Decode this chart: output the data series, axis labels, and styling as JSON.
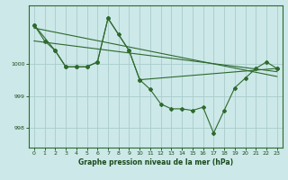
{
  "bg_color": "#cce8e8",
  "plot_bg_color": "#cce8e8",
  "grid_color": "#aacccc",
  "line_color": "#2d6a2d",
  "text_color": "#1a4a1a",
  "xlabel": "Graphe pression niveau de la mer (hPa)",
  "xlim": [
    -0.5,
    23.5
  ],
  "ylim": [
    997.4,
    1001.8
  ],
  "yticks": [
    998,
    999,
    1000
  ],
  "xticks": [
    0,
    1,
    2,
    3,
    4,
    5,
    6,
    7,
    8,
    9,
    10,
    11,
    12,
    13,
    14,
    15,
    16,
    17,
    18,
    19,
    20,
    21,
    22,
    23
  ],
  "series_main": {
    "x": [
      0,
      1,
      2,
      3,
      4,
      5,
      6,
      7,
      8,
      9,
      10,
      11,
      12,
      13,
      14,
      15,
      16,
      17,
      18,
      19,
      20,
      21,
      22,
      23
    ],
    "y": [
      1001.2,
      1000.7,
      1000.4,
      999.9,
      999.9,
      999.9,
      1000.05,
      1001.4,
      1000.9,
      1000.4,
      999.5,
      999.2,
      998.75,
      998.6,
      998.6,
      998.55,
      998.65,
      997.85,
      998.55,
      999.25,
      999.55,
      999.85,
      1000.05,
      999.85
    ]
  },
  "series_sparse": {
    "x": [
      0,
      2,
      3,
      4,
      5,
      6,
      7,
      9,
      10,
      23
    ],
    "y": [
      1001.2,
      1000.4,
      999.9,
      999.9,
      999.9,
      1000.05,
      1001.4,
      1000.4,
      999.5,
      999.85
    ]
  },
  "trend1": {
    "x": [
      0,
      23
    ],
    "y": [
      1001.1,
      999.6
    ]
  },
  "trend2": {
    "x": [
      0,
      23
    ],
    "y": [
      1000.7,
      999.75
    ]
  }
}
